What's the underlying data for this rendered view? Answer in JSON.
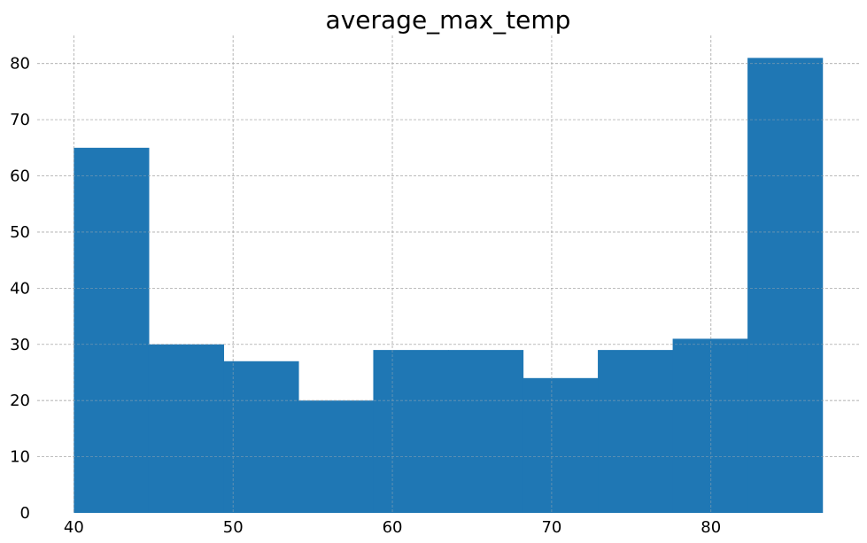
{
  "chart_data": {
    "type": "bar",
    "title": "average_max_temp",
    "xlabel": "",
    "ylabel": "",
    "bins": [
      {
        "start": 40.0,
        "end": 44.7,
        "count": 65
      },
      {
        "start": 44.7,
        "end": 49.4,
        "count": 30
      },
      {
        "start": 49.4,
        "end": 54.1,
        "count": 27
      },
      {
        "start": 54.1,
        "end": 58.8,
        "count": 20
      },
      {
        "start": 58.8,
        "end": 63.5,
        "count": 29
      },
      {
        "start": 63.5,
        "end": 68.2,
        "count": 29
      },
      {
        "start": 68.2,
        "end": 72.9,
        "count": 24
      },
      {
        "start": 72.9,
        "end": 77.6,
        "count": 29
      },
      {
        "start": 77.6,
        "end": 82.3,
        "count": 31
      },
      {
        "start": 82.3,
        "end": 87.0,
        "count": 81
      }
    ],
    "xlim": [
      37.7,
      89.3
    ],
    "ylim": [
      0,
      85
    ],
    "xticks": [
      40,
      50,
      60,
      70,
      80
    ],
    "yticks": [
      0,
      10,
      20,
      30,
      40,
      50,
      60,
      70,
      80
    ],
    "grid": true,
    "bar_color": "#1f77b4",
    "legend": "none"
  }
}
